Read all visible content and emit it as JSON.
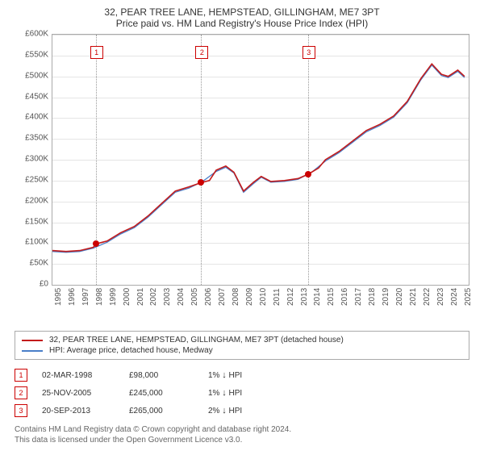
{
  "title": "32, PEAR TREE LANE, HEMPSTEAD, GILLINGHAM, ME7 3PT",
  "subtitle": "Price paid vs. HM Land Registry's House Price Index (HPI)",
  "chart": {
    "type": "line",
    "xlim": [
      1995,
      2025.5
    ],
    "ylim": [
      0,
      600000
    ],
    "ytick_step": 50000,
    "ytick_format_prefix": "£",
    "ytick_format_suffix": "K",
    "grid_color": "#e5e5e5",
    "background_color": "#ffffff",
    "axis_font_size": 10,
    "x_ticks": [
      1995,
      1996,
      1997,
      1998,
      1999,
      2000,
      2001,
      2002,
      2003,
      2004,
      2005,
      2006,
      2007,
      2008,
      2009,
      2010,
      2011,
      2012,
      2013,
      2014,
      2015,
      2016,
      2017,
      2018,
      2019,
      2020,
      2021,
      2022,
      2023,
      2024,
      2025
    ],
    "series": {
      "property": {
        "color": "#c31b1b",
        "width": 1.6,
        "label": "32, PEAR TREE LANE, HEMPSTEAD, GILLINGHAM, ME7 3PT (detached house)",
        "points": [
          [
            1995.0,
            82000
          ],
          [
            1996.0,
            80000
          ],
          [
            1997.0,
            82000
          ],
          [
            1998.0,
            90000
          ],
          [
            1998.17,
            98000
          ],
          [
            1999.0,
            105000
          ],
          [
            2000.0,
            125000
          ],
          [
            2001.0,
            140000
          ],
          [
            2002.0,
            165000
          ],
          [
            2003.0,
            195000
          ],
          [
            2004.0,
            225000
          ],
          [
            2005.0,
            235000
          ],
          [
            2005.9,
            245000
          ],
          [
            2006.5,
            250000
          ],
          [
            2007.0,
            275000
          ],
          [
            2007.7,
            285000
          ],
          [
            2008.3,
            270000
          ],
          [
            2009.0,
            225000
          ],
          [
            2009.7,
            245000
          ],
          [
            2010.3,
            260000
          ],
          [
            2011.0,
            248000
          ],
          [
            2012.0,
            250000
          ],
          [
            2013.0,
            255000
          ],
          [
            2013.72,
            265000
          ],
          [
            2014.5,
            280000
          ],
          [
            2015.0,
            300000
          ],
          [
            2016.0,
            320000
          ],
          [
            2017.0,
            345000
          ],
          [
            2018.0,
            370000
          ],
          [
            2019.0,
            385000
          ],
          [
            2020.0,
            405000
          ],
          [
            2021.0,
            440000
          ],
          [
            2022.0,
            495000
          ],
          [
            2022.8,
            530000
          ],
          [
            2023.5,
            505000
          ],
          [
            2024.0,
            500000
          ],
          [
            2024.7,
            515000
          ],
          [
            2025.2,
            500000
          ]
        ]
      },
      "hpi": {
        "color": "#4a7fc9",
        "width": 1.3,
        "label": "HPI: Average price, detached house, Medway",
        "points": [
          [
            1995.0,
            80000
          ],
          [
            1996.0,
            78000
          ],
          [
            1997.0,
            80000
          ],
          [
            1998.0,
            88000
          ],
          [
            1999.0,
            102000
          ],
          [
            2000.0,
            122000
          ],
          [
            2001.0,
            137000
          ],
          [
            2002.0,
            162000
          ],
          [
            2003.0,
            192000
          ],
          [
            2004.0,
            222000
          ],
          [
            2005.0,
            232000
          ],
          [
            2006.0,
            248000
          ],
          [
            2007.0,
            272000
          ],
          [
            2007.7,
            282000
          ],
          [
            2008.3,
            268000
          ],
          [
            2009.0,
            222000
          ],
          [
            2009.7,
            242000
          ],
          [
            2010.3,
            258000
          ],
          [
            2011.0,
            246000
          ],
          [
            2012.0,
            248000
          ],
          [
            2013.0,
            253000
          ],
          [
            2014.0,
            270000
          ],
          [
            2015.0,
            297000
          ],
          [
            2016.0,
            317000
          ],
          [
            2017.0,
            342000
          ],
          [
            2018.0,
            367000
          ],
          [
            2019.0,
            382000
          ],
          [
            2020.0,
            402000
          ],
          [
            2021.0,
            437000
          ],
          [
            2022.0,
            492000
          ],
          [
            2022.8,
            527000
          ],
          [
            2023.5,
            502000
          ],
          [
            2024.0,
            497000
          ],
          [
            2024.7,
            512000
          ],
          [
            2025.2,
            497000
          ]
        ]
      }
    },
    "markers": [
      {
        "n": "1",
        "x": 1998.17,
        "y": 98000
      },
      {
        "n": "2",
        "x": 2005.9,
        "y": 245000
      },
      {
        "n": "3",
        "x": 2013.72,
        "y": 265000
      }
    ]
  },
  "legend": [
    {
      "color": "#c31b1b",
      "label": "32, PEAR TREE LANE, HEMPSTEAD, GILLINGHAM, ME7 3PT (detached house)"
    },
    {
      "color": "#4a7fc9",
      "label": "HPI: Average price, detached house, Medway"
    }
  ],
  "sales": [
    {
      "n": "1",
      "date": "02-MAR-1998",
      "price": "£98,000",
      "diff": "1%",
      "dir": "↓",
      "against": "HPI"
    },
    {
      "n": "2",
      "date": "25-NOV-2005",
      "price": "£245,000",
      "diff": "1%",
      "dir": "↓",
      "against": "HPI"
    },
    {
      "n": "3",
      "date": "20-SEP-2013",
      "price": "£265,000",
      "diff": "2%",
      "dir": "↓",
      "against": "HPI"
    }
  ],
  "attribution": {
    "line1": "Contains HM Land Registry data © Crown copyright and database right 2024.",
    "line2": "This data is licensed under the Open Government Licence v3.0."
  }
}
